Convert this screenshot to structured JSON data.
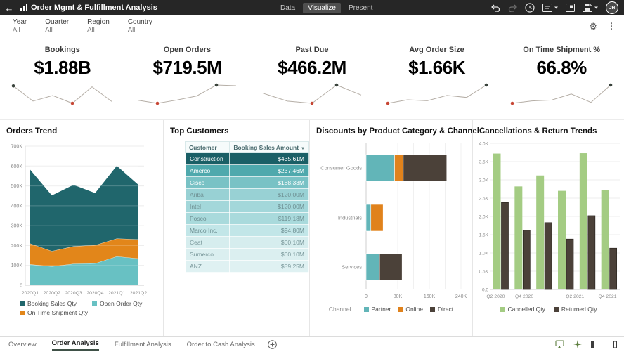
{
  "header": {
    "title": "Order Mgmt & Fulfillment Analysis",
    "nav_tabs": [
      "Data",
      "Visualize",
      "Present"
    ],
    "active_tab": "Visualize",
    "avatar_initials": "JH"
  },
  "filter_bar": {
    "filters": [
      {
        "label": "Year",
        "value": "All"
      },
      {
        "label": "Quarter",
        "value": "All"
      },
      {
        "label": "Region",
        "value": "All"
      },
      {
        "label": "Country",
        "value": "All"
      }
    ]
  },
  "kpis": [
    {
      "label": "Bookings",
      "value": "$1.88B",
      "spark": [
        0.95,
        0.12,
        0.42,
        0,
        0.9,
        0.1
      ],
      "min_index": 3,
      "max_index": 0
    },
    {
      "label": "Open Orders",
      "value": "$719.5M",
      "spark": [
        0.17,
        0,
        0.18,
        0.4,
        1,
        0.96
      ],
      "min_index": 1,
      "max_index": 4
    },
    {
      "label": "Past Due",
      "value": "$466.2M",
      "spark": [
        0.55,
        0.12,
        0,
        1,
        0.45
      ],
      "min_index": 2,
      "max_index": 3
    },
    {
      "label": "Avg Order Size",
      "value": "$1.66K",
      "spark": [
        0,
        0.19,
        0.14,
        0.43,
        0.32,
        1
      ],
      "min_index": 0,
      "max_index": 5
    },
    {
      "label": "On Time Shipment %",
      "value": "66.8%",
      "spark": [
        0,
        0.13,
        0.18,
        0.51,
        0.05,
        1
      ],
      "min_index": 0,
      "max_index": 5
    }
  ],
  "chart_data": [
    {
      "id": "orders_trend",
      "type": "area",
      "stacked": true,
      "title": "Orders Trend",
      "categories": [
        "2020Q1",
        "2020Q2",
        "2020Q3",
        "2020Q4",
        "2021Q1",
        "2021Q2"
      ],
      "series": [
        {
          "name": "Open Order Qty",
          "color": "#68c1c3",
          "values": [
            105000,
            95000,
            108000,
            110000,
            145000,
            135000
          ]
        },
        {
          "name": "On Time Shipment Qty",
          "color": "#e2861a",
          "values": [
            105000,
            77000,
            88000,
            92000,
            90000,
            96000
          ]
        },
        {
          "name": "Booking Sales Qty",
          "color": "#20666c",
          "values": [
            371000,
            280000,
            309000,
            262000,
            366000,
            274000
          ]
        }
      ],
      "legend_order": [
        "Booking Sales Qty",
        "Open Order Qty",
        "On Time Shipment Qty"
      ],
      "ylim": [
        0,
        700000
      ],
      "y_tick_labels": [
        "0",
        "100K",
        "200K",
        "300K",
        "400K",
        "500K",
        "600K",
        "700K"
      ],
      "grid": true,
      "legend_position": "bottom"
    },
    {
      "id": "top_customers",
      "type": "table",
      "title": "Top Customers",
      "columns": [
        "Customer",
        "Booking Sales Amount"
      ],
      "sorted_column": "Booking Sales Amount",
      "sort_direction": "desc",
      "rows": [
        {
          "customer": "Construction",
          "amount": "$435.61M"
        },
        {
          "customer": "Amerco",
          "amount": "$237.46M"
        },
        {
          "customer": "Cisco",
          "amount": "$188.33M"
        },
        {
          "customer": "Ariba",
          "amount": "$120.00M"
        },
        {
          "customer": "Intel",
          "amount": "$120.00M"
        },
        {
          "customer": "Posco",
          "amount": "$119.18M"
        },
        {
          "customer": "Marco Inc.",
          "amount": "$94.80M"
        },
        {
          "customer": "Ceat",
          "amount": "$60.10M"
        },
        {
          "customer": "Sumerco",
          "amount": "$60.10M"
        },
        {
          "customer": "ANZ",
          "amount": "$59.25M"
        }
      ],
      "row_bg": [
        "#1a5f66",
        "#4fa9ad",
        "#79c2c5",
        "#98d1d4",
        "#a3d7da",
        "#a9dadc",
        "#c2e6e8",
        "#d6edee",
        "#dbeff0",
        "#dff1f2"
      ],
      "row_fg": [
        "#ffffff",
        "#ffffff",
        "#ffffff",
        "#6f9194",
        "#6f9194",
        "#6f9194",
        "#6f9194",
        "#7a989b",
        "#7a989b",
        "#7a989b"
      ]
    },
    {
      "id": "discounts",
      "type": "bar",
      "orientation": "horizontal",
      "stacked": true,
      "title": "Discounts by Product Category & Channel",
      "categories": [
        "Consumer Goods",
        "Industrials",
        "Services"
      ],
      "series": [
        {
          "name": "Partner",
          "color": "#62b5b8",
          "values": [
            72000,
            12000,
            34000
          ]
        },
        {
          "name": "Online",
          "color": "#e0821c",
          "values": [
            22000,
            31000,
            0
          ]
        },
        {
          "name": "Direct",
          "color": "#4b4139",
          "values": [
            110000,
            0,
            57000
          ]
        }
      ],
      "xlim": [
        0,
        240000
      ],
      "x_tick_labels": [
        "0",
        "80K",
        "160K",
        "240K"
      ],
      "legend_title": "Channel",
      "legend_position": "bottom"
    },
    {
      "id": "cancellations",
      "type": "bar",
      "orientation": "vertical",
      "grouped": true,
      "title": "Cancellations & Return Trends",
      "group_count": 6,
      "x_tick_labels": [
        "Q2 2020",
        "Q4 2020",
        "Q2 2021",
        "Q4 2021"
      ],
      "x_tick_positions": [
        0.04,
        0.26,
        0.65,
        0.9
      ],
      "series": [
        {
          "name": "Cancelled Qty",
          "color": "#a4cc83",
          "values": [
            3720,
            2820,
            3120,
            2700,
            3730,
            2730
          ]
        },
        {
          "name": "Returned Qty",
          "color": "#4b4139",
          "values": [
            2380,
            1620,
            1830,
            1380,
            2020,
            1130
          ]
        }
      ],
      "ylim": [
        0,
        4000
      ],
      "y_tick_labels": [
        "0.0",
        "0.5K",
        "1.0K",
        "1.5K",
        "2.0K",
        "2.5K",
        "3.0K",
        "3.5K",
        "4.0K"
      ],
      "legend_position": "bottom"
    }
  ],
  "footer": {
    "tabs": [
      "Overview",
      "Order Analysis",
      "Fulfillment Analysis",
      "Order to Cash Analysis"
    ],
    "active_tab": "Order Analysis"
  },
  "colors": {
    "topbar_bg": "#262626",
    "spark_line": "#b5aea6",
    "spark_min_dot": "#c74634",
    "spark_max_dot": "#39423b",
    "grid": "#ececec",
    "axis_text": "#8a8a8a",
    "active_tab_underline": "#3f5147"
  }
}
